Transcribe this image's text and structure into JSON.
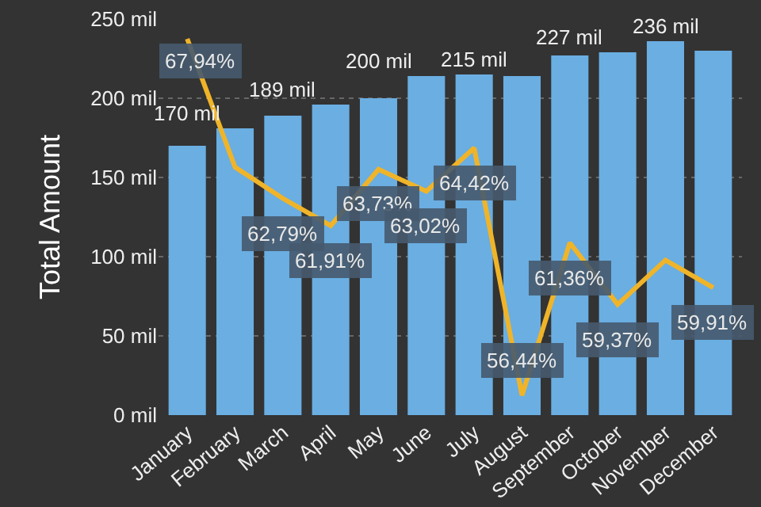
{
  "chart_data": {
    "type": "bar",
    "categories": [
      "January",
      "February",
      "March",
      "April",
      "May",
      "June",
      "July",
      "August",
      "September",
      "October",
      "November",
      "December"
    ],
    "ylabel": "Total Amount",
    "series": [
      {
        "color": "#6aaee2",
        "values": [
          170,
          181,
          189,
          196,
          200,
          214,
          215,
          214,
          227,
          229,
          236,
          230
        ],
        "value_labels": [
          "170 mil",
          null,
          "189 mil",
          null,
          "200 mil",
          null,
          "215 mil",
          null,
          "227 mil",
          null,
          "236 mil",
          null
        ]
      },
      {
        "type": "line",
        "axis": "y2",
        "color": "#f0b429",
        "values": [
          67.94,
          63.8,
          62.79,
          61.91,
          63.73,
          63.02,
          64.42,
          56.44,
          61.36,
          59.37,
          60.8,
          59.91
        ],
        "value_labels": [
          "67,94%",
          null,
          "62,79%",
          "61,91%",
          "63,73%",
          "63,02%",
          "64,42%",
          "56,44%",
          "61,36%",
          "59,37%",
          null,
          "59,91%"
        ]
      }
    ],
    "ylim": [
      0,
      250
    ],
    "yticks": [
      {
        "value": 0,
        "label": "0 mil"
      },
      {
        "value": 50,
        "label": "50 mil"
      },
      {
        "value": 100,
        "label": "100 mil"
      },
      {
        "value": 150,
        "label": "150 mil"
      },
      {
        "value": 200,
        "label": "200 mil"
      },
      {
        "value": 250,
        "label": "250 mil"
      }
    ],
    "grid": "y",
    "marker": "none",
    "line_style": "solid"
  }
}
